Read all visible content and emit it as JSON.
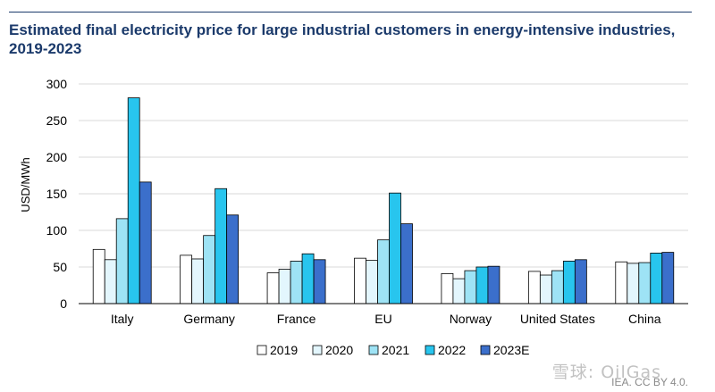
{
  "header": {
    "title": "Estimated final electricity price for large industrial customers in energy-intensive industries, 2019-2023"
  },
  "footer": {
    "source": "IEA. CC BY 4.0.",
    "watermark": "雪球: OilGas"
  },
  "colors": {
    "title": "#1b3a6b",
    "series": [
      "#ffffff",
      "#e3f6fd",
      "#9ee3f5",
      "#28c5ee",
      "#3b6fcb"
    ]
  },
  "chart_data": {
    "type": "bar",
    "title": "Estimated final electricity price for large industrial customers in energy-intensive industries, 2019-2023",
    "xlabel": "",
    "ylabel": "USD/MWh",
    "ylim": [
      0,
      300
    ],
    "yticks": [
      0,
      50,
      100,
      150,
      200,
      250,
      300
    ],
    "grid": true,
    "legend_position": "bottom",
    "categories": [
      "Italy",
      "Germany",
      "France",
      "EU",
      "Norway",
      "United States",
      "China"
    ],
    "series": [
      {
        "name": "2019",
        "values": [
          74,
          66,
          42,
          62,
          41,
          44,
          57
        ]
      },
      {
        "name": "2020",
        "values": [
          60,
          61,
          47,
          59,
          34,
          39,
          55
        ]
      },
      {
        "name": "2021",
        "values": [
          116,
          93,
          58,
          87,
          45,
          45,
          56
        ]
      },
      {
        "name": "2022",
        "values": [
          281,
          157,
          68,
          151,
          50,
          58,
          69
        ]
      },
      {
        "name": "2023E",
        "values": [
          166,
          121,
          60,
          109,
          51,
          60,
          70
        ]
      }
    ]
  }
}
